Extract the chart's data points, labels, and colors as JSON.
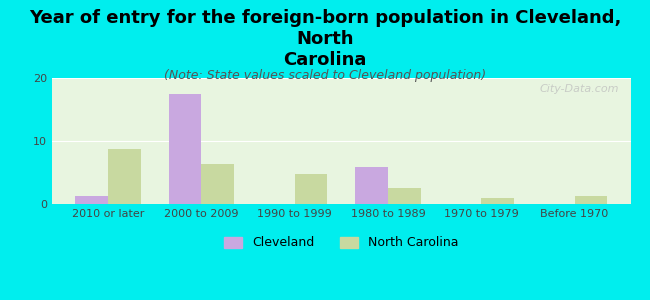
{
  "title": "Year of entry for the foreign-born population in Cleveland, North\nCarolina",
  "subtitle": "(Note: State values scaled to Cleveland population)",
  "categories": [
    "2010 or later",
    "2000 to 2009",
    "1990 to 1999",
    "1980 to 1989",
    "1970 to 1979",
    "Before 1970"
  ],
  "cleveland_values": [
    1.3,
    17.5,
    0,
    5.8,
    0,
    0
  ],
  "nc_values": [
    8.8,
    6.3,
    4.8,
    2.5,
    1.0,
    1.3
  ],
  "cleveland_color": "#c9a8e0",
  "nc_color": "#c8d9a0",
  "background_color": "#00eeee",
  "plot_bg_gradient_top": "#e8f5e0",
  "plot_bg_gradient_bottom": "#f8fff4",
  "ylim": [
    0,
    20
  ],
  "yticks": [
    0,
    10,
    20
  ],
  "bar_width": 0.35,
  "title_fontsize": 13,
  "subtitle_fontsize": 9,
  "tick_fontsize": 8,
  "legend_fontsize": 9,
  "watermark": "City-Data.com"
}
